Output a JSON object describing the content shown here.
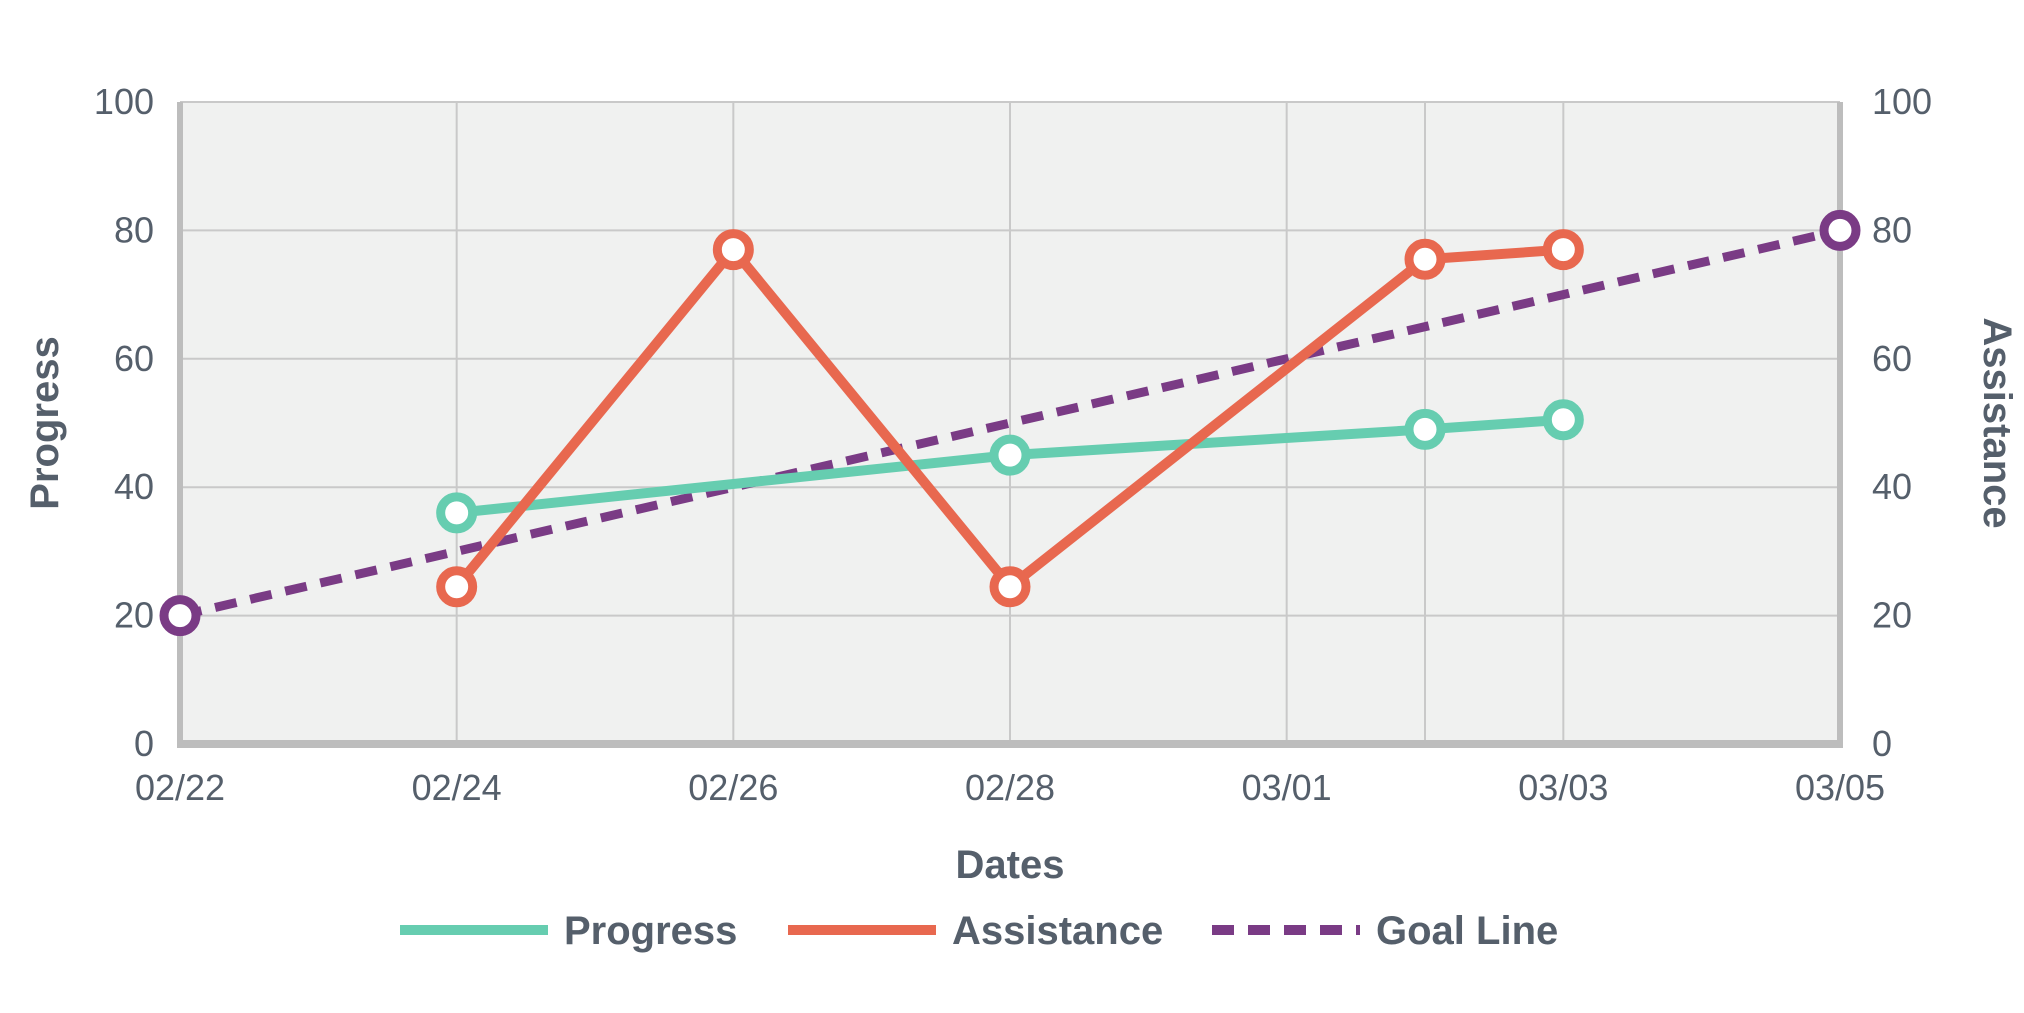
{
  "chart_data": {
    "type": "line",
    "xlabel": "Dates",
    "ylabel_left": "Progress",
    "ylabel_right": "Assistance",
    "x_tick_labels": [
      "02/22",
      "02/24",
      "02/26",
      "02/28",
      "03/01",
      "03/03",
      "03/05"
    ],
    "ylim_left": [
      0,
      100
    ],
    "ylim_right": [
      0,
      100
    ],
    "y_ticks": [
      0,
      20,
      40,
      60,
      80,
      100
    ],
    "grid": true,
    "legend_position": "bottom",
    "series": [
      {
        "name": "Progress",
        "axis": "left",
        "style": "solid",
        "color": "#66cdb0",
        "points": [
          {
            "x": "02/24",
            "y": 36
          },
          {
            "x": "02/28",
            "y": 45
          },
          {
            "x": "03/02",
            "y": 49
          },
          {
            "x": "03/03",
            "y": 50.5
          }
        ]
      },
      {
        "name": "Assistance",
        "axis": "right",
        "style": "solid",
        "color": "#e8684f",
        "points": [
          {
            "x": "02/24",
            "y": 24.5
          },
          {
            "x": "02/26",
            "y": 77
          },
          {
            "x": "02/28",
            "y": 24.5
          },
          {
            "x": "03/02",
            "y": 75.5
          },
          {
            "x": "03/03",
            "y": 77
          }
        ]
      },
      {
        "name": "Goal Line",
        "axis": "left",
        "style": "dashed",
        "color": "#7a3b85",
        "points": [
          {
            "x": "02/22",
            "y": 20
          },
          {
            "x": "03/05",
            "y": 80
          }
        ]
      }
    ]
  },
  "colors": {
    "plot_background": "#f0f1f0",
    "grid": "#c9c9c9",
    "axis": "#bdbdbd",
    "text": "#555f6b"
  }
}
